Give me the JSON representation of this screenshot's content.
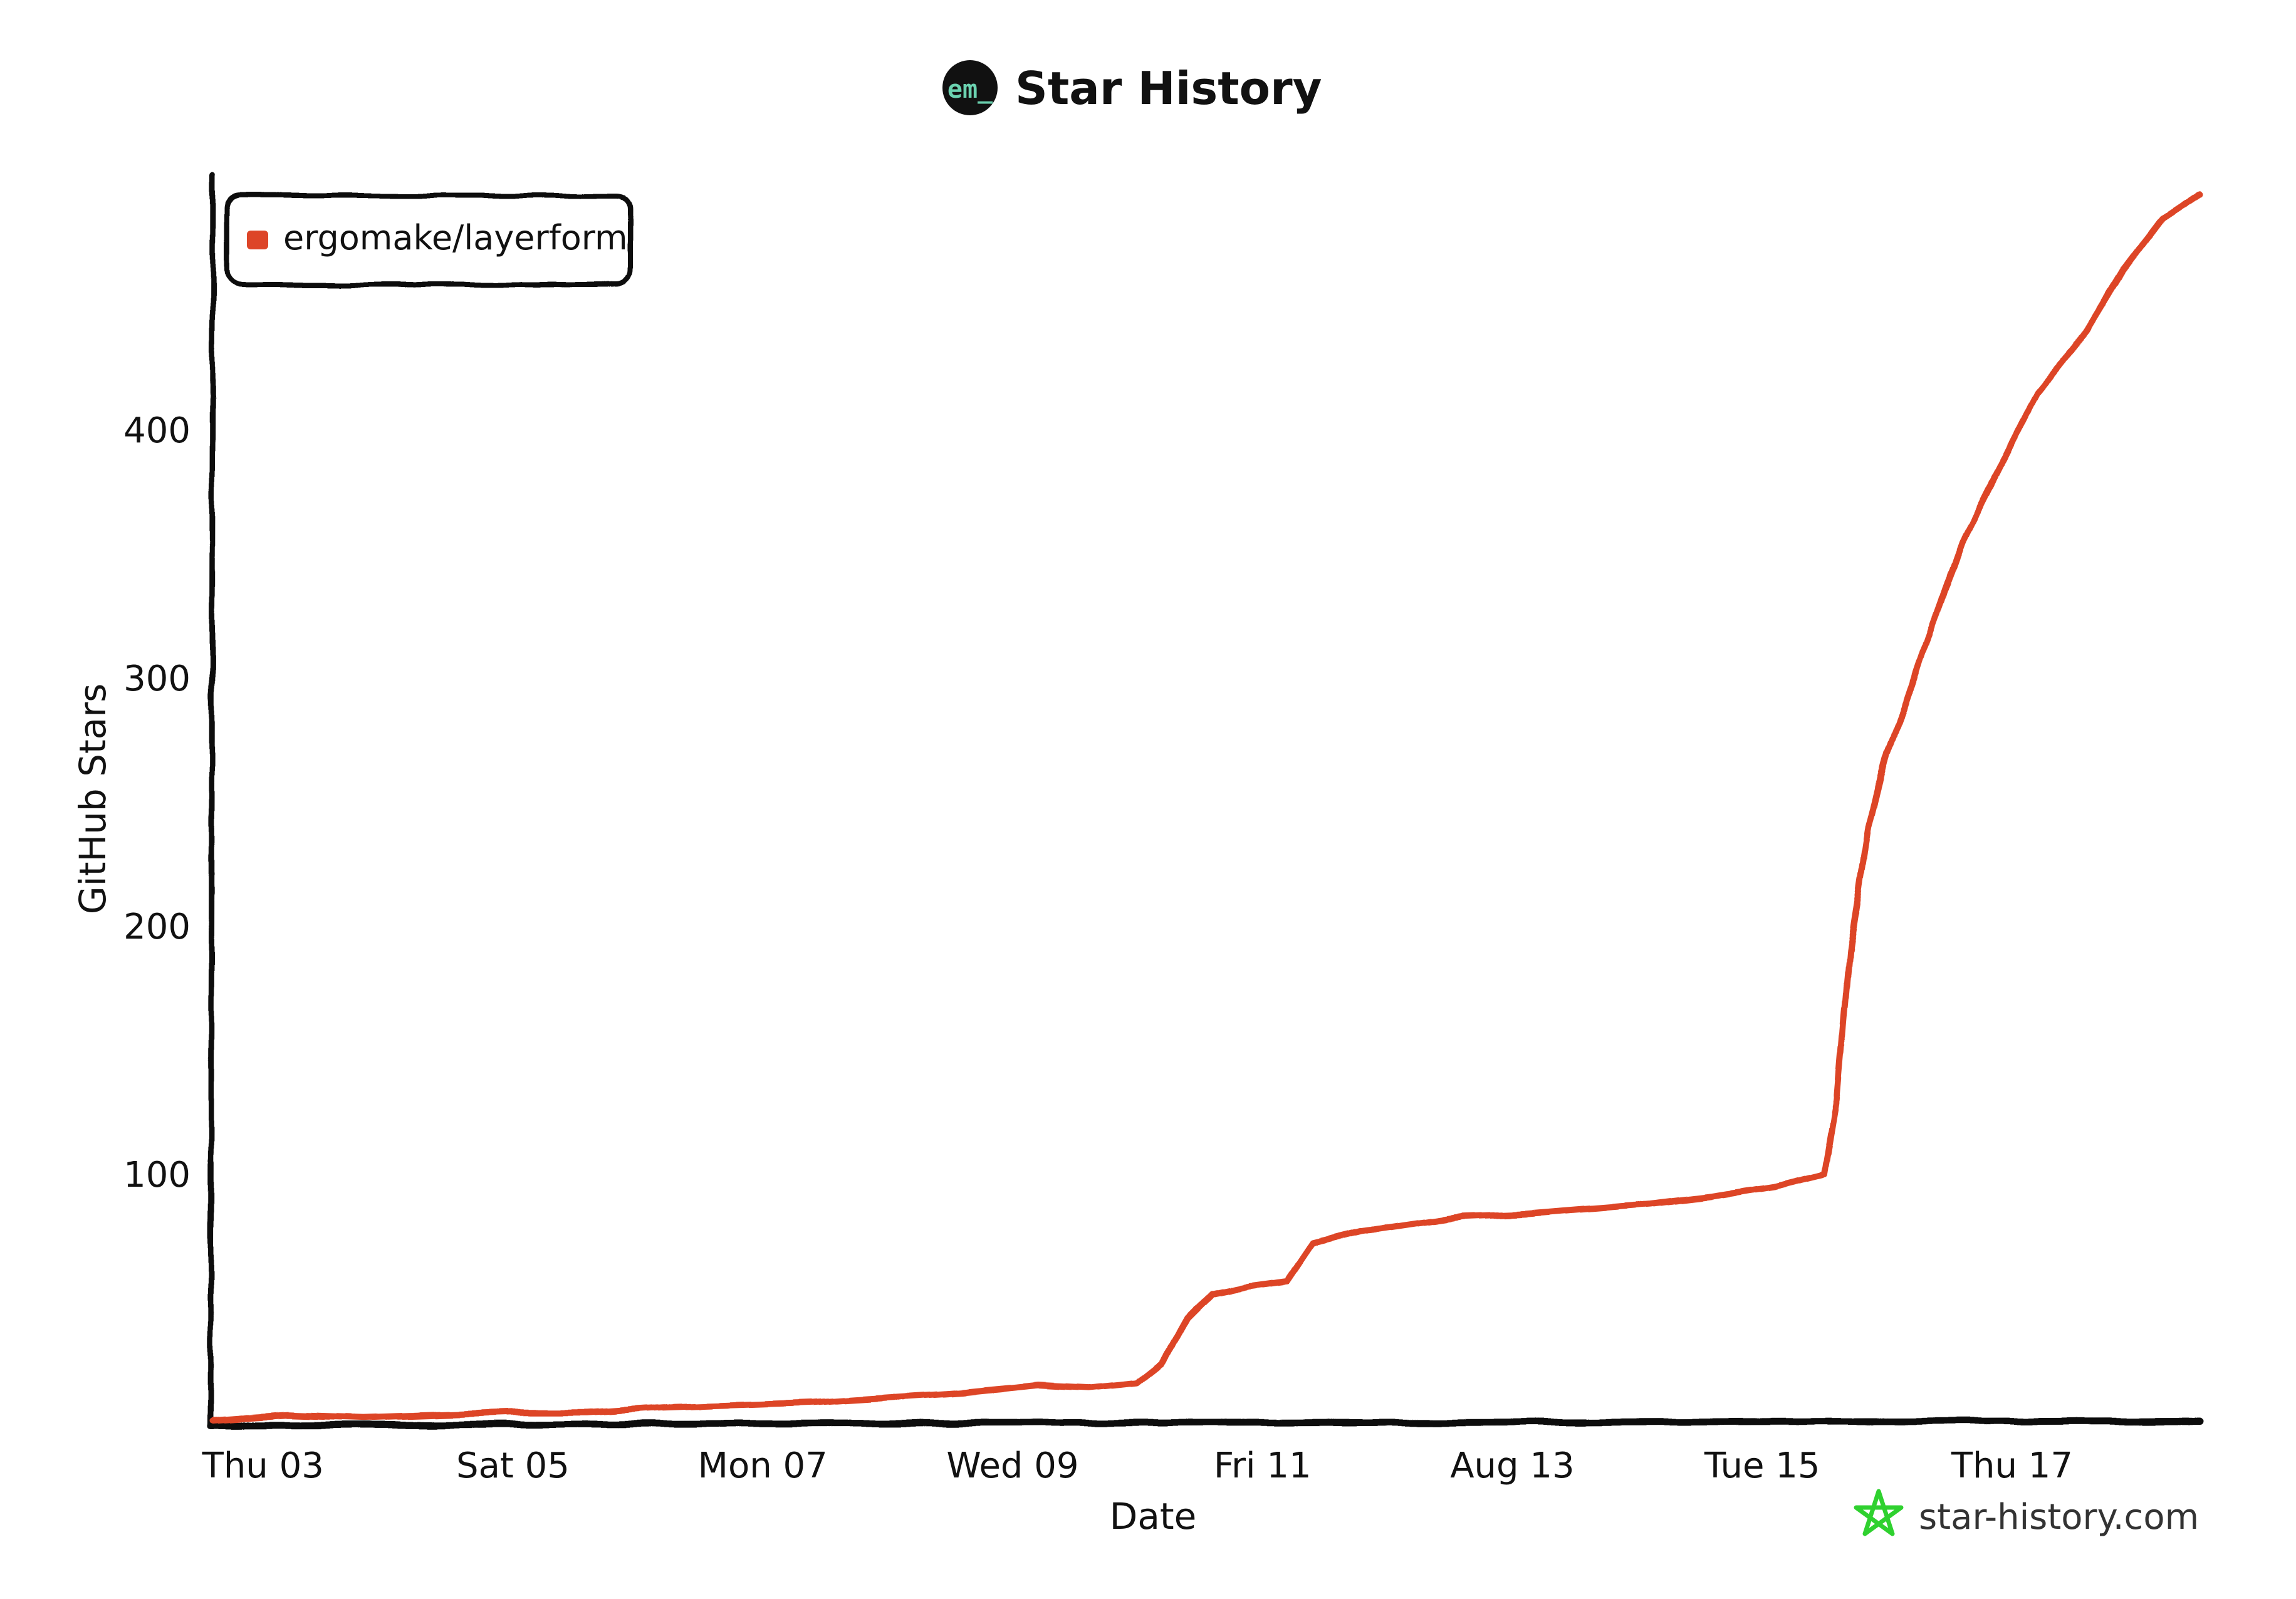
{
  "header": {
    "logo_text": "em_",
    "title": "Star History"
  },
  "watermark": {
    "text": "star-history.com",
    "icon": "star-icon"
  },
  "colors": {
    "series": "#dd4528",
    "axis": "#111111",
    "logo_bg": "#111111",
    "logo_accent": "#6bd2b0",
    "watermark_icon": "#2fd12f"
  },
  "chart_data": {
    "type": "line",
    "title": "Star History",
    "xlabel": "Date",
    "ylabel": "GitHub Stars",
    "ylim": [
      0,
      500
    ],
    "xlim": [
      0,
      15.9
    ],
    "x_ticks": [
      {
        "x": 0.4,
        "label": "Thu 03"
      },
      {
        "x": 2.4,
        "label": "Sat 05"
      },
      {
        "x": 4.4,
        "label": "Mon 07"
      },
      {
        "x": 6.4,
        "label": "Wed 09"
      },
      {
        "x": 8.4,
        "label": "Fri 11"
      },
      {
        "x": 10.4,
        "label": "Aug 13"
      },
      {
        "x": 12.4,
        "label": "Tue 15"
      },
      {
        "x": 14.4,
        "label": "Thu 17"
      }
    ],
    "y_ticks": [
      100,
      200,
      300,
      400
    ],
    "grid": false,
    "legend": "top-left",
    "series": [
      {
        "name": "ergomake/layerform",
        "x": [
          0,
          0.6,
          1.2,
          1.8,
          2.4,
          3.0,
          3.6,
          4.2,
          4.8,
          5.4,
          6.0,
          6.6,
          7.0,
          7.4,
          7.6,
          7.8,
          8.0,
          8.3,
          8.6,
          8.8,
          9.2,
          9.6,
          10.0,
          10.5,
          11.0,
          11.5,
          12.0,
          12.5,
          12.9,
          13.0,
          13.1,
          13.25,
          13.4,
          13.55,
          13.75,
          14.0,
          14.3,
          14.6,
          15.0,
          15.3,
          15.6,
          15.9
        ],
        "values": [
          1,
          3,
          2,
          3,
          4,
          4,
          6,
          7,
          8,
          10,
          12,
          15,
          14,
          16,
          24,
          42,
          52,
          55,
          57,
          72,
          77,
          80,
          83,
          84,
          86,
          88,
          91,
          95,
          100,
          130,
          190,
          240,
          270,
          290,
          320,
          355,
          385,
          415,
          440,
          465,
          485,
          495
        ]
      }
    ]
  }
}
